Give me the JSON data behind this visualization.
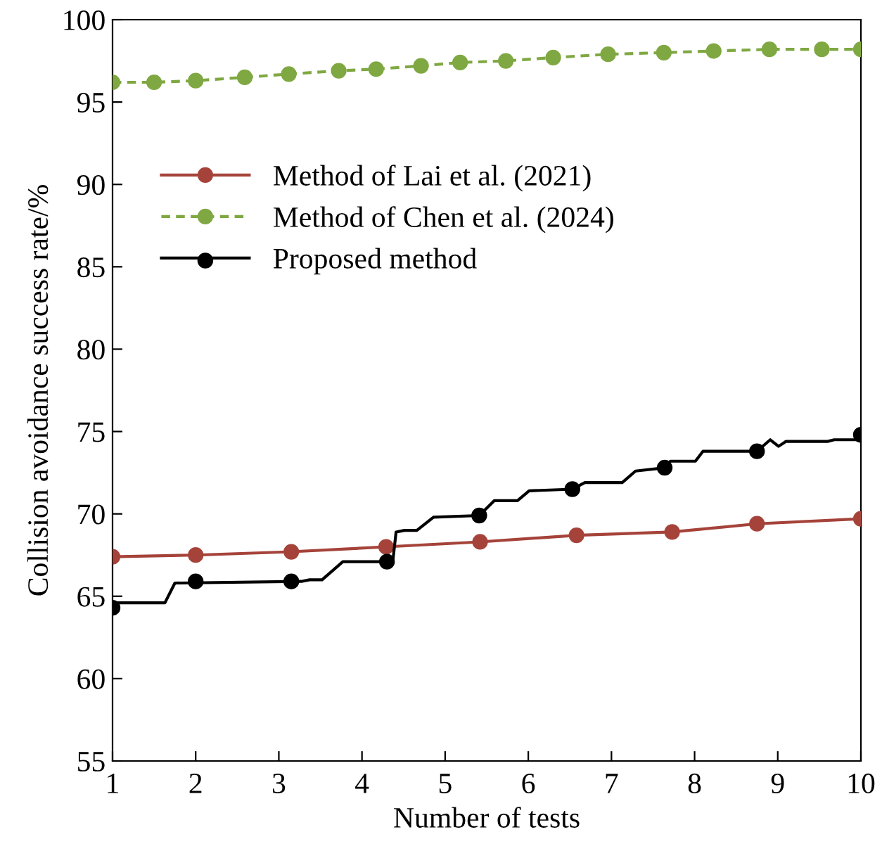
{
  "chart_data": {
    "type": "line",
    "xlabel": "Number of tests",
    "ylabel": "Collision avoidance success rate/%",
    "xlim": [
      1,
      10
    ],
    "ylim": [
      55,
      100
    ],
    "xticks": [
      1,
      2,
      3,
      4,
      5,
      6,
      7,
      8,
      9,
      10
    ],
    "yticks": [
      55,
      60,
      65,
      70,
      75,
      80,
      85,
      90,
      95,
      100
    ],
    "grid": false,
    "legend": "top left",
    "series": [
      {
        "name": "Method of Lai et al. (2021)",
        "color": "#a5433a",
        "marker": "circle",
        "line_style": "solid",
        "x": [
          1,
          2,
          3.15,
          4.29,
          5.42,
          6.58,
          7.73,
          8.75,
          10
        ],
        "values": [
          67.4,
          67.5,
          67.7,
          68.0,
          68.3,
          68.7,
          68.9,
          69.4,
          69.7
        ]
      },
      {
        "name": "Method of Chen et al. (2024)",
        "color": "#7fa842",
        "marker": "circle",
        "line_style": "dashed",
        "x": [
          1,
          1.5,
          2,
          2.59,
          3.12,
          3.72,
          4.17,
          4.71,
          5.18,
          5.73,
          6.3,
          6.96,
          7.63,
          8.23,
          8.9,
          9.53,
          10
        ],
        "values": [
          96.2,
          96.2,
          96.3,
          96.5,
          96.7,
          96.9,
          97.0,
          97.2,
          97.4,
          97.5,
          97.7,
          97.9,
          98.0,
          98.1,
          98.2,
          98.2,
          98.2
        ]
      },
      {
        "name": "Proposed method",
        "color": "#000000",
        "marker": "none",
        "line_style": "solid",
        "x": [
          1,
          1.05,
          1.63,
          1.75,
          3.27,
          3.37,
          3.52,
          3.77,
          4.37,
          4.41,
          4.51,
          4.66,
          4.86,
          5.41,
          5.59,
          5.87,
          6.01,
          6.53,
          6.68,
          7.13,
          7.29,
          7.64,
          7.71,
          8.01,
          8.1,
          8.75,
          8.91,
          9.01,
          9.1,
          9.6,
          9.68,
          9.98,
          10
        ],
        "values": [
          64.3,
          64.6,
          64.6,
          65.8,
          65.9,
          66.0,
          66.0,
          67.1,
          67.1,
          68.9,
          69.0,
          69.0,
          69.8,
          69.9,
          70.8,
          70.8,
          71.4,
          71.5,
          71.9,
          71.9,
          72.6,
          72.8,
          73.2,
          73.2,
          73.8,
          73.8,
          74.5,
          74.1,
          74.4,
          74.4,
          74.5,
          74.5,
          74.8
        ]
      },
      {
        "type": "scatter",
        "color": "#000000",
        "marker": "circle",
        "x": [
          1,
          2,
          3.15,
          4.3,
          5.41,
          6.53,
          7.64,
          8.75,
          10
        ],
        "values": [
          64.3,
          65.9,
          65.9,
          67.1,
          69.9,
          71.5,
          72.8,
          73.8,
          74.8
        ]
      }
    ]
  }
}
